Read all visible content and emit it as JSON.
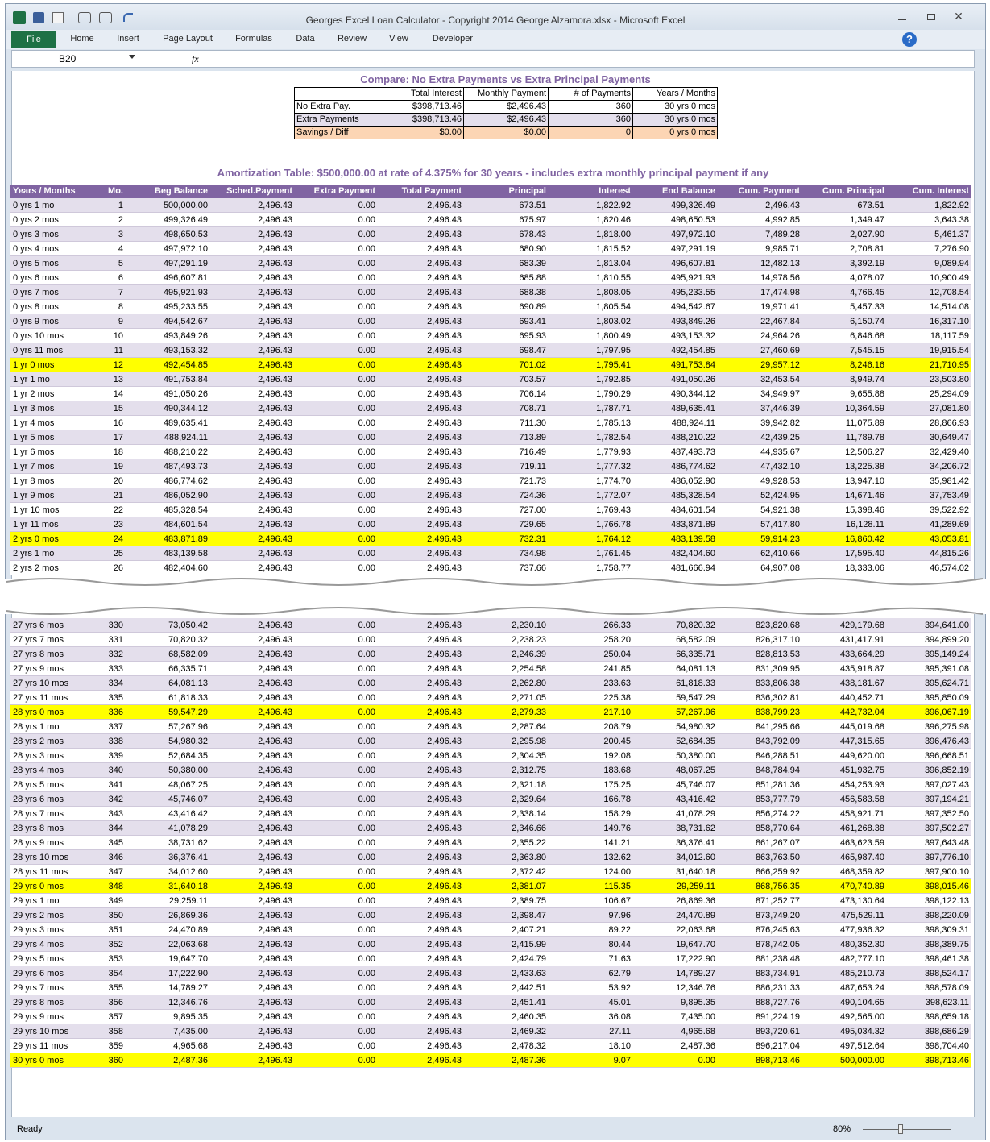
{
  "window": {
    "title": "Georges Excel Loan Calculator - Copyright 2014 George Alzamora.xlsx  -  Microsoft Excel",
    "tabs": [
      "File",
      "Home",
      "Insert",
      "Page Layout",
      "Formulas",
      "Data",
      "Review",
      "View",
      "Developer"
    ],
    "name_box": "B20",
    "formula_icon": "fx",
    "status": "Ready",
    "zoom": "80%"
  },
  "compare": {
    "title": "Compare: No Extra Payments vs Extra Principal Payments",
    "headers": [
      "Total Interest",
      "Monthly Payment",
      "# of Payments",
      "Years / Months"
    ],
    "rows": [
      [
        "No Extra Pay.",
        "$398,713.46",
        "$2,496.43",
        "360",
        "30 yrs 0 mos"
      ],
      [
        "Extra Payments",
        "$398,713.46",
        "$2,496.43",
        "360",
        "30 yrs 0 mos"
      ],
      [
        "Savings / Diff",
        "$0.00",
        "$0.00",
        "0",
        "0 yrs 0 mos"
      ]
    ]
  },
  "amortization": {
    "title": "Amortization Table:  $500,000.00 at rate of 4.375% for 30 years - includes extra monthly principal payment if any",
    "headers": [
      "Years / Months",
      "Mo.",
      "Beg Balance",
      "Sched.Payment",
      "Extra Payment",
      "Total Payment",
      "Principal",
      "Interest",
      "End Balance",
      "Cum. Payment",
      "Cum. Principal",
      "Cum. Interest"
    ],
    "top_rows": [
      [
        "0 yrs 1 mo",
        "1",
        "500,000.00",
        "2,496.43",
        "0.00",
        "2,496.43",
        "673.51",
        "1,822.92",
        "499,326.49",
        "2,496.43",
        "673.51",
        "1,822.92"
      ],
      [
        "0 yrs 2 mos",
        "2",
        "499,326.49",
        "2,496.43",
        "0.00",
        "2,496.43",
        "675.97",
        "1,820.46",
        "498,650.53",
        "4,992.85",
        "1,349.47",
        "3,643.38"
      ],
      [
        "0 yrs 3 mos",
        "3",
        "498,650.53",
        "2,496.43",
        "0.00",
        "2,496.43",
        "678.43",
        "1,818.00",
        "497,972.10",
        "7,489.28",
        "2,027.90",
        "5,461.37"
      ],
      [
        "0 yrs 4 mos",
        "4",
        "497,972.10",
        "2,496.43",
        "0.00",
        "2,496.43",
        "680.90",
        "1,815.52",
        "497,291.19",
        "9,985.71",
        "2,708.81",
        "7,276.90"
      ],
      [
        "0 yrs 5 mos",
        "5",
        "497,291.19",
        "2,496.43",
        "0.00",
        "2,496.43",
        "683.39",
        "1,813.04",
        "496,607.81",
        "12,482.13",
        "3,392.19",
        "9,089.94"
      ],
      [
        "0 yrs 6 mos",
        "6",
        "496,607.81",
        "2,496.43",
        "0.00",
        "2,496.43",
        "685.88",
        "1,810.55",
        "495,921.93",
        "14,978.56",
        "4,078.07",
        "10,900.49"
      ],
      [
        "0 yrs 7 mos",
        "7",
        "495,921.93",
        "2,496.43",
        "0.00",
        "2,496.43",
        "688.38",
        "1,808.05",
        "495,233.55",
        "17,474.98",
        "4,766.45",
        "12,708.54"
      ],
      [
        "0 yrs 8 mos",
        "8",
        "495,233.55",
        "2,496.43",
        "0.00",
        "2,496.43",
        "690.89",
        "1,805.54",
        "494,542.67",
        "19,971.41",
        "5,457.33",
        "14,514.08"
      ],
      [
        "0 yrs 9 mos",
        "9",
        "494,542.67",
        "2,496.43",
        "0.00",
        "2,496.43",
        "693.41",
        "1,803.02",
        "493,849.26",
        "22,467.84",
        "6,150.74",
        "16,317.10"
      ],
      [
        "0 yrs 10 mos",
        "10",
        "493,849.26",
        "2,496.43",
        "0.00",
        "2,496.43",
        "695.93",
        "1,800.49",
        "493,153.32",
        "24,964.26",
        "6,846.68",
        "18,117.59"
      ],
      [
        "0 yrs 11 mos",
        "11",
        "493,153.32",
        "2,496.43",
        "0.00",
        "2,496.43",
        "698.47",
        "1,797.95",
        "492,454.85",
        "27,460.69",
        "7,545.15",
        "19,915.54"
      ],
      [
        "1 yr 0 mos",
        "12",
        "492,454.85",
        "2,496.43",
        "0.00",
        "2,496.43",
        "701.02",
        "1,795.41",
        "491,753.84",
        "29,957.12",
        "8,246.16",
        "21,710.95"
      ],
      [
        "1 yr 1 mo",
        "13",
        "491,753.84",
        "2,496.43",
        "0.00",
        "2,496.43",
        "703.57",
        "1,792.85",
        "491,050.26",
        "32,453.54",
        "8,949.74",
        "23,503.80"
      ],
      [
        "1 yr 2 mos",
        "14",
        "491,050.26",
        "2,496.43",
        "0.00",
        "2,496.43",
        "706.14",
        "1,790.29",
        "490,344.12",
        "34,949.97",
        "9,655.88",
        "25,294.09"
      ],
      [
        "1 yr 3 mos",
        "15",
        "490,344.12",
        "2,496.43",
        "0.00",
        "2,496.43",
        "708.71",
        "1,787.71",
        "489,635.41",
        "37,446.39",
        "10,364.59",
        "27,081.80"
      ],
      [
        "1 yr 4 mos",
        "16",
        "489,635.41",
        "2,496.43",
        "0.00",
        "2,496.43",
        "711.30",
        "1,785.13",
        "488,924.11",
        "39,942.82",
        "11,075.89",
        "28,866.93"
      ],
      [
        "1 yr 5 mos",
        "17",
        "488,924.11",
        "2,496.43",
        "0.00",
        "2,496.43",
        "713.89",
        "1,782.54",
        "488,210.22",
        "42,439.25",
        "11,789.78",
        "30,649.47"
      ],
      [
        "1 yr 6 mos",
        "18",
        "488,210.22",
        "2,496.43",
        "0.00",
        "2,496.43",
        "716.49",
        "1,779.93",
        "487,493.73",
        "44,935.67",
        "12,506.27",
        "32,429.40"
      ],
      [
        "1 yr 7 mos",
        "19",
        "487,493.73",
        "2,496.43",
        "0.00",
        "2,496.43",
        "719.11",
        "1,777.32",
        "486,774.62",
        "47,432.10",
        "13,225.38",
        "34,206.72"
      ],
      [
        "1 yr 8 mos",
        "20",
        "486,774.62",
        "2,496.43",
        "0.00",
        "2,496.43",
        "721.73",
        "1,774.70",
        "486,052.90",
        "49,928.53",
        "13,947.10",
        "35,981.42"
      ],
      [
        "1 yr 9 mos",
        "21",
        "486,052.90",
        "2,496.43",
        "0.00",
        "2,496.43",
        "724.36",
        "1,772.07",
        "485,328.54",
        "52,424.95",
        "14,671.46",
        "37,753.49"
      ],
      [
        "1 yr 10 mos",
        "22",
        "485,328.54",
        "2,496.43",
        "0.00",
        "2,496.43",
        "727.00",
        "1,769.43",
        "484,601.54",
        "54,921.38",
        "15,398.46",
        "39,522.92"
      ],
      [
        "1 yr 11 mos",
        "23",
        "484,601.54",
        "2,496.43",
        "0.00",
        "2,496.43",
        "729.65",
        "1,766.78",
        "483,871.89",
        "57,417.80",
        "16,128.11",
        "41,289.69"
      ],
      [
        "2 yrs 0 mos",
        "24",
        "483,871.89",
        "2,496.43",
        "0.00",
        "2,496.43",
        "732.31",
        "1,764.12",
        "483,139.58",
        "59,914.23",
        "16,860.42",
        "43,053.81"
      ],
      [
        "2 yrs 1 mo",
        "25",
        "483,139.58",
        "2,496.43",
        "0.00",
        "2,496.43",
        "734.98",
        "1,761.45",
        "482,404.60",
        "62,410.66",
        "17,595.40",
        "44,815.26"
      ],
      [
        "2 yrs 2 mos",
        "26",
        "482,404.60",
        "2,496.43",
        "0.00",
        "2,496.43",
        "737.66",
        "1,758.77",
        "481,666.94",
        "64,907.08",
        "18,333.06",
        "46,574.02"
      ]
    ],
    "bottom_rows": [
      [
        "27 yrs 6 mos",
        "330",
        "73,050.42",
        "2,496.43",
        "0.00",
        "2,496.43",
        "2,230.10",
        "266.33",
        "70,820.32",
        "823,820.68",
        "429,179.68",
        "394,641.00"
      ],
      [
        "27 yrs 7 mos",
        "331",
        "70,820.32",
        "2,496.43",
        "0.00",
        "2,496.43",
        "2,238.23",
        "258.20",
        "68,582.09",
        "826,317.10",
        "431,417.91",
        "394,899.20"
      ],
      [
        "27 yrs 8 mos",
        "332",
        "68,582.09",
        "2,496.43",
        "0.00",
        "2,496.43",
        "2,246.39",
        "250.04",
        "66,335.71",
        "828,813.53",
        "433,664.29",
        "395,149.24"
      ],
      [
        "27 yrs 9 mos",
        "333",
        "66,335.71",
        "2,496.43",
        "0.00",
        "2,496.43",
        "2,254.58",
        "241.85",
        "64,081.13",
        "831,309.95",
        "435,918.87",
        "395,391.08"
      ],
      [
        "27 yrs 10 mos",
        "334",
        "64,081.13",
        "2,496.43",
        "0.00",
        "2,496.43",
        "2,262.80",
        "233.63",
        "61,818.33",
        "833,806.38",
        "438,181.67",
        "395,624.71"
      ],
      [
        "27 yrs 11 mos",
        "335",
        "61,818.33",
        "2,496.43",
        "0.00",
        "2,496.43",
        "2,271.05",
        "225.38",
        "59,547.29",
        "836,302.81",
        "440,452.71",
        "395,850.09"
      ],
      [
        "28 yrs 0 mos",
        "336",
        "59,547.29",
        "2,496.43",
        "0.00",
        "2,496.43",
        "2,279.33",
        "217.10",
        "57,267.96",
        "838,799.23",
        "442,732.04",
        "396,067.19"
      ],
      [
        "28 yrs 1 mo",
        "337",
        "57,267.96",
        "2,496.43",
        "0.00",
        "2,496.43",
        "2,287.64",
        "208.79",
        "54,980.32",
        "841,295.66",
        "445,019.68",
        "396,275.98"
      ],
      [
        "28 yrs 2 mos",
        "338",
        "54,980.32",
        "2,496.43",
        "0.00",
        "2,496.43",
        "2,295.98",
        "200.45",
        "52,684.35",
        "843,792.09",
        "447,315.65",
        "396,476.43"
      ],
      [
        "28 yrs 3 mos",
        "339",
        "52,684.35",
        "2,496.43",
        "0.00",
        "2,496.43",
        "2,304.35",
        "192.08",
        "50,380.00",
        "846,288.51",
        "449,620.00",
        "396,668.51"
      ],
      [
        "28 yrs 4 mos",
        "340",
        "50,380.00",
        "2,496.43",
        "0.00",
        "2,496.43",
        "2,312.75",
        "183.68",
        "48,067.25",
        "848,784.94",
        "451,932.75",
        "396,852.19"
      ],
      [
        "28 yrs 5 mos",
        "341",
        "48,067.25",
        "2,496.43",
        "0.00",
        "2,496.43",
        "2,321.18",
        "175.25",
        "45,746.07",
        "851,281.36",
        "454,253.93",
        "397,027.43"
      ],
      [
        "28 yrs 6 mos",
        "342",
        "45,746.07",
        "2,496.43",
        "0.00",
        "2,496.43",
        "2,329.64",
        "166.78",
        "43,416.42",
        "853,777.79",
        "456,583.58",
        "397,194.21"
      ],
      [
        "28 yrs 7 mos",
        "343",
        "43,416.42",
        "2,496.43",
        "0.00",
        "2,496.43",
        "2,338.14",
        "158.29",
        "41,078.29",
        "856,274.22",
        "458,921.71",
        "397,352.50"
      ],
      [
        "28 yrs 8 mos",
        "344",
        "41,078.29",
        "2,496.43",
        "0.00",
        "2,496.43",
        "2,346.66",
        "149.76",
        "38,731.62",
        "858,770.64",
        "461,268.38",
        "397,502.27"
      ],
      [
        "28 yrs 9 mos",
        "345",
        "38,731.62",
        "2,496.43",
        "0.00",
        "2,496.43",
        "2,355.22",
        "141.21",
        "36,376.41",
        "861,267.07",
        "463,623.59",
        "397,643.48"
      ],
      [
        "28 yrs 10 mos",
        "346",
        "36,376.41",
        "2,496.43",
        "0.00",
        "2,496.43",
        "2,363.80",
        "132.62",
        "34,012.60",
        "863,763.50",
        "465,987.40",
        "397,776.10"
      ],
      [
        "28 yrs 11 mos",
        "347",
        "34,012.60",
        "2,496.43",
        "0.00",
        "2,496.43",
        "2,372.42",
        "124.00",
        "31,640.18",
        "866,259.92",
        "468,359.82",
        "397,900.10"
      ],
      [
        "29 yrs 0 mos",
        "348",
        "31,640.18",
        "2,496.43",
        "0.00",
        "2,496.43",
        "2,381.07",
        "115.35",
        "29,259.11",
        "868,756.35",
        "470,740.89",
        "398,015.46"
      ],
      [
        "29 yrs 1 mo",
        "349",
        "29,259.11",
        "2,496.43",
        "0.00",
        "2,496.43",
        "2,389.75",
        "106.67",
        "26,869.36",
        "871,252.77",
        "473,130.64",
        "398,122.13"
      ],
      [
        "29 yrs 2 mos",
        "350",
        "26,869.36",
        "2,496.43",
        "0.00",
        "2,496.43",
        "2,398.47",
        "97.96",
        "24,470.89",
        "873,749.20",
        "475,529.11",
        "398,220.09"
      ],
      [
        "29 yrs 3 mos",
        "351",
        "24,470.89",
        "2,496.43",
        "0.00",
        "2,496.43",
        "2,407.21",
        "89.22",
        "22,063.68",
        "876,245.63",
        "477,936.32",
        "398,309.31"
      ],
      [
        "29 yrs 4 mos",
        "352",
        "22,063.68",
        "2,496.43",
        "0.00",
        "2,496.43",
        "2,415.99",
        "80.44",
        "19,647.70",
        "878,742.05",
        "480,352.30",
        "398,389.75"
      ],
      [
        "29 yrs 5 mos",
        "353",
        "19,647.70",
        "2,496.43",
        "0.00",
        "2,496.43",
        "2,424.79",
        "71.63",
        "17,222.90",
        "881,238.48",
        "482,777.10",
        "398,461.38"
      ],
      [
        "29 yrs 6 mos",
        "354",
        "17,222.90",
        "2,496.43",
        "0.00",
        "2,496.43",
        "2,433.63",
        "62.79",
        "14,789.27",
        "883,734.91",
        "485,210.73",
        "398,524.17"
      ],
      [
        "29 yrs 7 mos",
        "355",
        "14,789.27",
        "2,496.43",
        "0.00",
        "2,496.43",
        "2,442.51",
        "53.92",
        "12,346.76",
        "886,231.33",
        "487,653.24",
        "398,578.09"
      ],
      [
        "29 yrs 8 mos",
        "356",
        "12,346.76",
        "2,496.43",
        "0.00",
        "2,496.43",
        "2,451.41",
        "45.01",
        "9,895.35",
        "888,727.76",
        "490,104.65",
        "398,623.11"
      ],
      [
        "29 yrs 9 mos",
        "357",
        "9,895.35",
        "2,496.43",
        "0.00",
        "2,496.43",
        "2,460.35",
        "36.08",
        "7,435.00",
        "891,224.19",
        "492,565.00",
        "398,659.18"
      ],
      [
        "29 yrs 10 mos",
        "358",
        "7,435.00",
        "2,496.43",
        "0.00",
        "2,496.43",
        "2,469.32",
        "27.11",
        "4,965.68",
        "893,720.61",
        "495,034.32",
        "398,686.29"
      ],
      [
        "29 yrs 11 mos",
        "359",
        "4,965.68",
        "2,496.43",
        "0.00",
        "2,496.43",
        "2,478.32",
        "18.10",
        "2,487.36",
        "896,217.04",
        "497,512.64",
        "398,704.40"
      ],
      [
        "30 yrs 0 mos",
        "360",
        "2,487.36",
        "2,496.43",
        "0.00",
        "2,496.43",
        "2,487.36",
        "9.07",
        "0.00",
        "898,713.46",
        "500,000.00",
        "398,713.46"
      ]
    ]
  }
}
